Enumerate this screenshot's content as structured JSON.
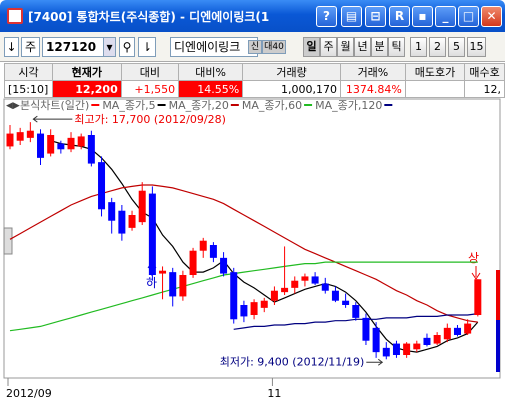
{
  "window": {
    "title": "[7400] 통합차트(주식종합) - 디엔에이링크(1",
    "help_button": "?",
    "r_button": "R"
  },
  "toolbar": {
    "market": "주",
    "code": "127120",
    "name": "디엔에이링크",
    "badges": [
      "신",
      "대40"
    ],
    "periods": [
      "일",
      "주",
      "월",
      "년",
      "분",
      "틱",
      "1",
      "2",
      "5",
      "15"
    ]
  },
  "quote_table": {
    "headers": [
      "시각",
      "현재가",
      "대비",
      "대비%",
      "거래량",
      "거래%",
      "매도호가",
      "매수호"
    ],
    "row": [
      "[15:10]",
      "12,200",
      "+1,550",
      "14.55%",
      "1,000,170",
      "1374.84%",
      "",
      "12,"
    ]
  },
  "chart_data": {
    "type": "candlestick",
    "legend_title": "본식차트(일간)",
    "up_color": "#ff0000",
    "down_color": "#0000ff",
    "categories": [
      "2012/09",
      null,
      null,
      null,
      null,
      null,
      null,
      null,
      null,
      null,
      null,
      null,
      null,
      null,
      null,
      null,
      null,
      null,
      null,
      null,
      null,
      null,
      null,
      null,
      null,
      null,
      "11",
      null,
      null,
      null,
      null,
      null,
      null,
      null,
      null,
      null,
      null,
      null,
      null,
      null,
      null,
      null,
      null,
      null,
      null,
      null,
      null
    ],
    "open": [
      16850,
      17050,
      17150,
      17300,
      16600,
      16950,
      16750,
      16850,
      17250,
      16300,
      14900,
      14600,
      14000,
      14200,
      15200,
      12400,
      12450,
      11600,
      12350,
      13200,
      13400,
      12950,
      12450,
      11300,
      10950,
      11200,
      11450,
      11750,
      11900,
      12150,
      12300,
      12050,
      11800,
      11450,
      11300,
      10850,
      10500,
      9800,
      9950,
      9550,
      9750,
      10150,
      9950,
      10100,
      10500,
      10300,
      10950
    ],
    "high": [
      17600,
      17500,
      17700,
      17450,
      17450,
      17050,
      17350,
      17300,
      17400,
      16500,
      15050,
      14800,
      14600,
      15600,
      15450,
      12650,
      12600,
      12500,
      13300,
      13650,
      13500,
      13150,
      12600,
      11450,
      11500,
      11550,
      11950,
      13350,
      12300,
      12400,
      12450,
      12250,
      11950,
      11700,
      11400,
      11000,
      10700,
      10000,
      10050,
      10000,
      10050,
      10300,
      10350,
      10650,
      10600,
      10800,
      12200
    ],
    "low": [
      16750,
      16900,
      17000,
      16200,
      16500,
      16600,
      16650,
      16750,
      16150,
      14400,
      13800,
      13550,
      13900,
      14100,
      12150,
      11500,
      11250,
      11450,
      12250,
      12950,
      12800,
      12300,
      10650,
      10700,
      10800,
      11050,
      11300,
      11650,
      11700,
      11950,
      12000,
      11700,
      11400,
      11200,
      10750,
      9900,
      9450,
      9400,
      9450,
      9450,
      9650,
      9850,
      9900,
      10000,
      10200,
      10250,
      10900
    ],
    "close": [
      17300,
      17350,
      17400,
      16450,
      17250,
      16750,
      17150,
      17200,
      16250,
      14650,
      14250,
      13800,
      14450,
      15300,
      12350,
      12500,
      11600,
      12350,
      13200,
      13550,
      12950,
      12400,
      10800,
      10900,
      11400,
      11450,
      11800,
      11900,
      12150,
      12300,
      12050,
      11800,
      11450,
      11300,
      10850,
      10050,
      9650,
      9500,
      9550,
      9950,
      9950,
      9900,
      10250,
      10500,
      10250,
      10650,
      12200
    ],
    "series": [
      {
        "name": "MA_종가,5",
        "color": "#000000",
        "values": [
          null,
          null,
          null,
          null,
          17050,
          16950,
          16900,
          16850,
          16750,
          16450,
          16050,
          15550,
          15000,
          14550,
          14350,
          13750,
          13350,
          12800,
          12450,
          12450,
          12600,
          12850,
          12400,
          12100,
          11900,
          11650,
          11400,
          11550,
          11700,
          11850,
          11950,
          12050,
          11950,
          11750,
          11450,
          11050,
          10550,
          10100,
          9800,
          9700,
          9650,
          9750,
          9850,
          10050,
          10150,
          10300,
          10700
        ]
      },
      {
        "name": "MA_종가,20",
        "color": "#c00000",
        "values": [
          13600,
          13800,
          14000,
          14200,
          14400,
          14600,
          14800,
          14950,
          15100,
          15200,
          15300,
          15400,
          15450,
          15500,
          15500,
          15450,
          15400,
          15300,
          15200,
          15100,
          15000,
          14850,
          14650,
          14450,
          14250,
          14050,
          13850,
          13650,
          13450,
          13250,
          13100,
          12950,
          12800,
          12650,
          12500,
          12350,
          12200,
          12000,
          11800,
          11650,
          11450,
          11300,
          11100,
          10950,
          10850,
          10750,
          10700
        ]
      },
      {
        "name": "MA_종가,60",
        "color": "#22bb22",
        "values": [
          10400,
          10450,
          10500,
          10550,
          10650,
          10750,
          10850,
          10950,
          11050,
          11150,
          11250,
          11350,
          11450,
          11550,
          11650,
          11750,
          11850,
          11950,
          12050,
          12150,
          12250,
          12350,
          12400,
          12450,
          12500,
          12550,
          12600,
          12650,
          12700,
          12750,
          12750,
          12800,
          12800,
          12800,
          12800,
          12800,
          12800,
          12800,
          12800,
          12800,
          12800,
          12800,
          12800,
          12800,
          12800,
          12800,
          12800
        ]
      },
      {
        "name": "MA_종가,120",
        "color": "#000080",
        "values": [
          null,
          null,
          null,
          null,
          null,
          null,
          null,
          null,
          null,
          null,
          null,
          null,
          null,
          null,
          null,
          null,
          null,
          null,
          null,
          null,
          null,
          null,
          10450,
          10500,
          10550,
          10550,
          10600,
          10600,
          10650,
          10650,
          10700,
          10700,
          10750,
          10750,
          10800,
          10800,
          10800,
          10850,
          10850,
          10850,
          10900,
          10900,
          10900,
          10950,
          10950,
          10950,
          11000
        ]
      }
    ],
    "ylim": [
      8850,
      17950
    ],
    "annotations": {
      "high": "최고가: 17,700 (2012/09/28)",
      "low": "최저가: 9,400 (2012/11/19)",
      "limit_up": "상",
      "limit_down": "하"
    }
  }
}
